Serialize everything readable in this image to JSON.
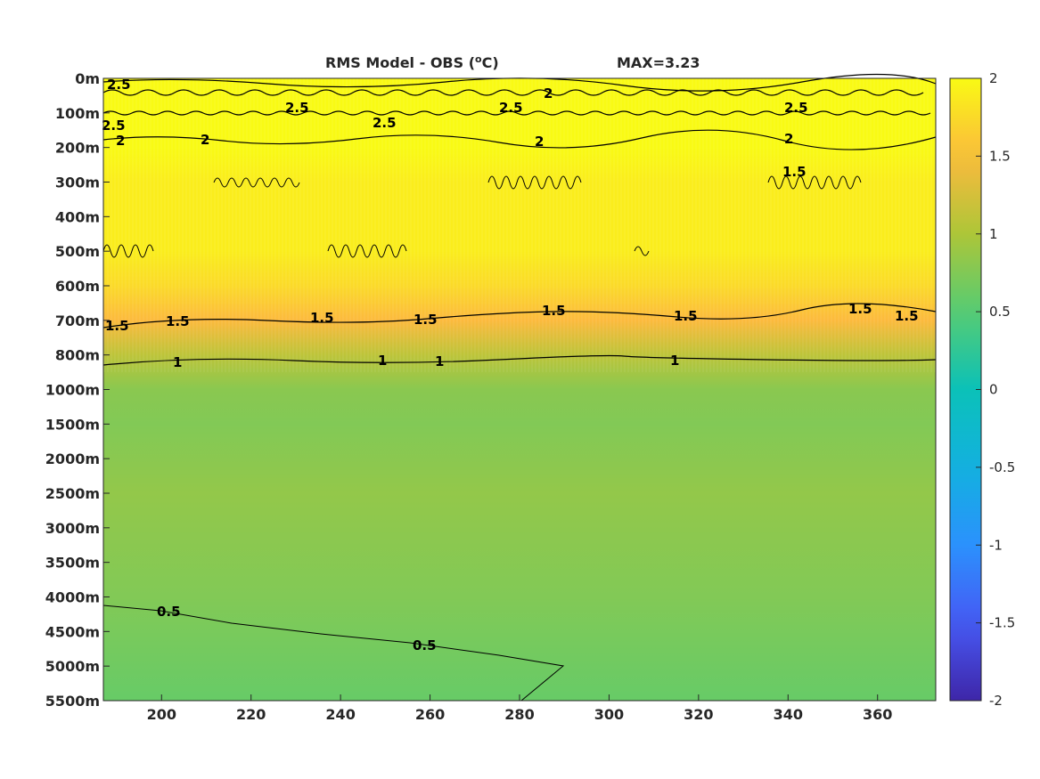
{
  "chart_data": {
    "type": "heatmap",
    "title": "RMS Model - OBS (°C)",
    "title_main": "RMS Model - OBS (",
    "title_sup": "o",
    "title_unit": "C)",
    "annotation": "MAX=3.23",
    "xlim": [
      187,
      373
    ],
    "x_ticks": [
      200,
      220,
      240,
      260,
      280,
      300,
      320,
      340,
      360
    ],
    "y_tick_labels": [
      "0m",
      "100m",
      "200m",
      "300m",
      "400m",
      "500m",
      "600m",
      "700m",
      "800m",
      "1000m",
      "1500m",
      "2000m",
      "2500m",
      "3000m",
      "3500m",
      "4000m",
      "4500m",
      "5000m",
      "5500m"
    ],
    "colorbar": {
      "clim": [
        -2,
        2
      ],
      "ticks": [
        "2",
        "1.5",
        "1",
        "0.5",
        "0",
        "-0.5",
        "-1",
        "-1.5",
        "-2"
      ],
      "colormap": "parula"
    },
    "depth_profile": [
      {
        "depth": "0m",
        "value": 2.0
      },
      {
        "depth": "200m",
        "value": 2.0
      },
      {
        "depth": "300m",
        "value": 1.9
      },
      {
        "depth": "500m",
        "value": 1.9
      },
      {
        "depth": "600m",
        "value": 1.75
      },
      {
        "depth": "700m",
        "value": 1.5
      },
      {
        "depth": "800m",
        "value": 1.1
      },
      {
        "depth": "1000m",
        "value": 0.8
      },
      {
        "depth": "1500m",
        "value": 0.75
      },
      {
        "depth": "2500m",
        "value": 0.85
      },
      {
        "depth": "4000m",
        "value": 0.75
      },
      {
        "depth": "5500m",
        "value": 0.6
      }
    ],
    "contours": [
      {
        "level": "2.5",
        "label": "2.5"
      },
      {
        "level": "2",
        "label": "2"
      },
      {
        "level": "1.5",
        "label": "1.5"
      },
      {
        "level": "1",
        "label": "1"
      },
      {
        "level": "0.5",
        "label": "0.5"
      }
    ],
    "grid": false
  }
}
